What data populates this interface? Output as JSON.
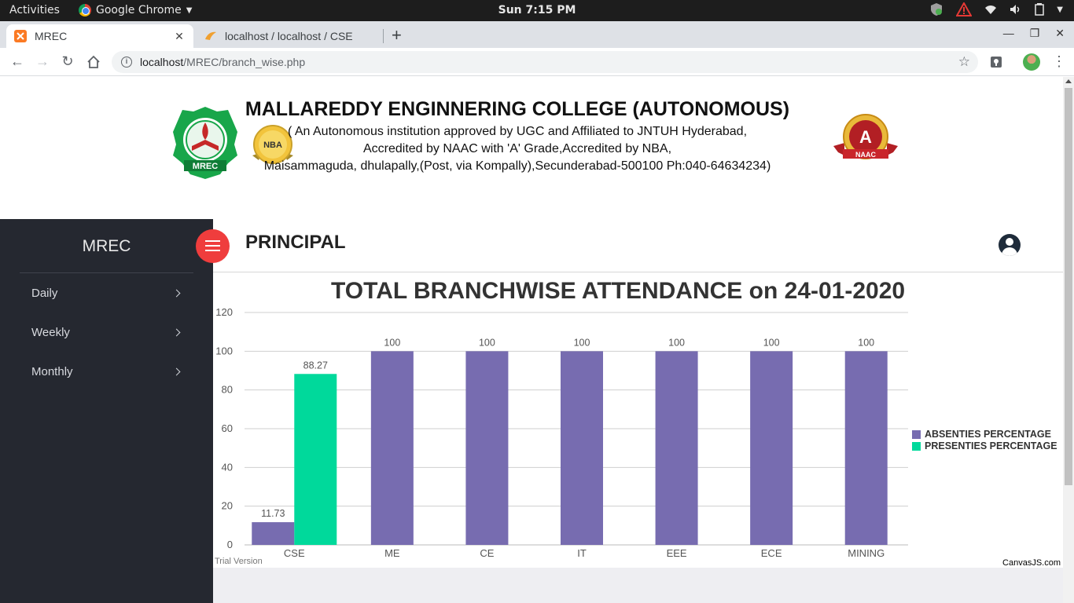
{
  "os_bar": {
    "activities": "Activities",
    "app_name": "Google Chrome",
    "clock": "Sun  7:15 PM"
  },
  "browser": {
    "tabs": [
      {
        "title": "MREC",
        "active": true
      },
      {
        "title": "localhost / localhost / CSE",
        "active": false
      }
    ],
    "url_host": "localhost",
    "url_path": "/MREC/branch_wise.php"
  },
  "college": {
    "title": "MALLAREDDY ENGINNERING COLLEGE (AUTONOMOUS)",
    "line1": "( An Autonomous institution approved by UGC and Affiliated to JNTUH Hyderabad,",
    "line2": "Accredited by NAAC with 'A' Grade,Accredited by NBA,",
    "line3": "Maisammaguda, dhulapally,(Post, via Kompally),Secunderabad-500100 Ph:040-64634234)",
    "logo_left_text": "MREC",
    "nba_text": "NBA",
    "naac_grade": "A",
    "naac_text": "NAAC"
  },
  "sidebar": {
    "brand": "MREC",
    "items": [
      {
        "label": "Daily"
      },
      {
        "label": "Weekly"
      },
      {
        "label": "Monthly"
      }
    ]
  },
  "header": {
    "role": "PRINCIPAL"
  },
  "chart_data": {
    "type": "bar",
    "title": "TOTAL BRANCHWISE ATTENDANCE on 24-01-2020",
    "categories": [
      "CSE",
      "ME",
      "CE",
      "IT",
      "EEE",
      "ECE",
      "MINING"
    ],
    "series": [
      {
        "name": "ABSENTIES PERCENTAGE",
        "color": "#776cb0",
        "values": [
          11.73,
          100,
          100,
          100,
          100,
          100,
          100
        ]
      },
      {
        "name": "PRESENTIES PERCENTAGE",
        "color": "#00d99b",
        "values": [
          88.27,
          null,
          null,
          null,
          null,
          null,
          null
        ]
      }
    ],
    "ylim": [
      0,
      120
    ],
    "yticks": [
      0,
      20,
      40,
      60,
      80,
      100,
      120
    ],
    "grid": true,
    "legend_position": "right",
    "trial_text": "Trial Version",
    "credit": "CanvasJS.com"
  }
}
